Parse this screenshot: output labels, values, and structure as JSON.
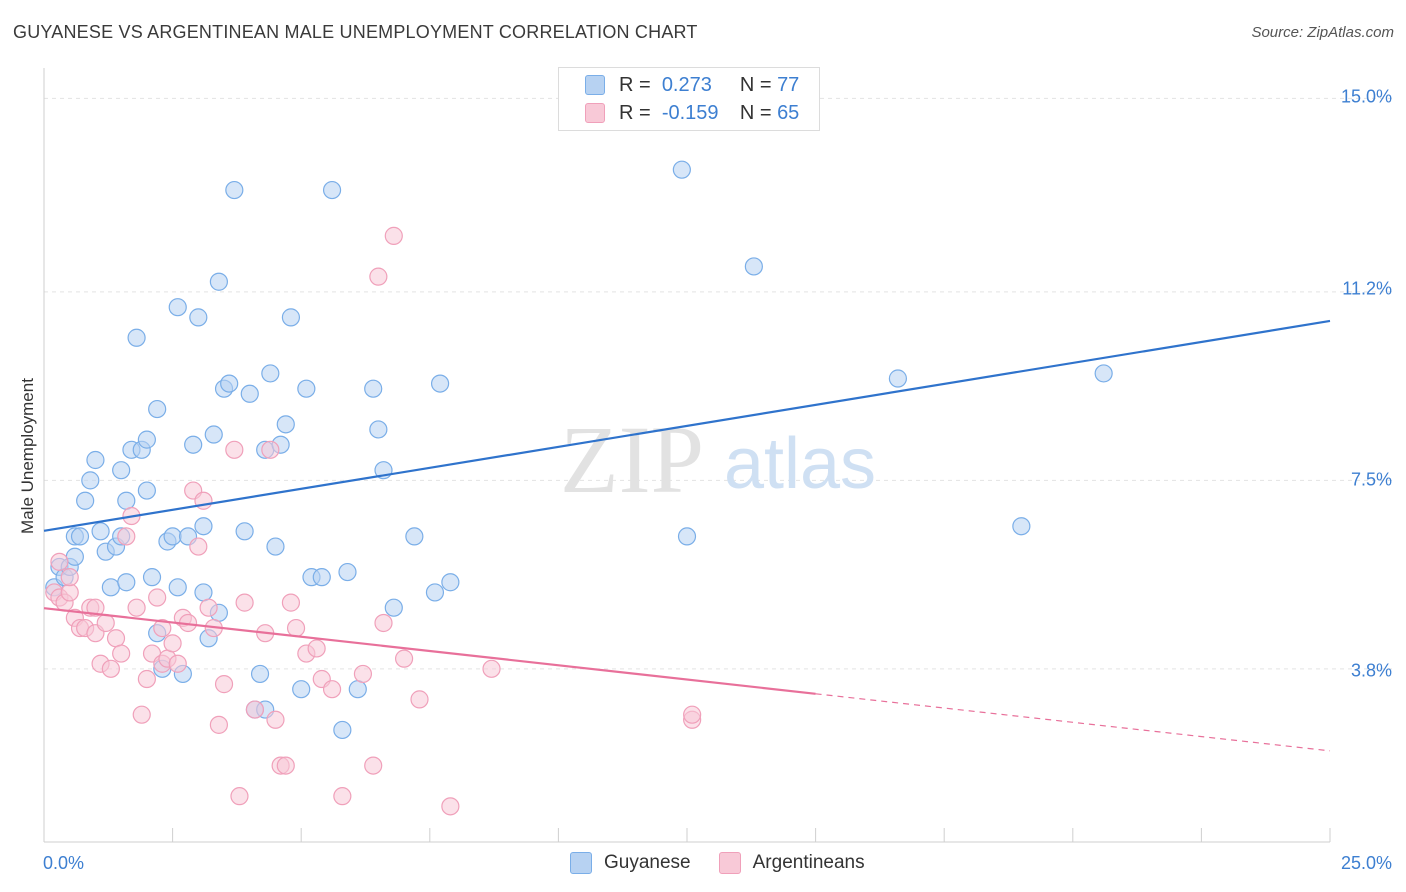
{
  "title": "GUYANESE VS ARGENTINEAN MALE UNEMPLOYMENT CORRELATION CHART",
  "source": "Source: ZipAtlas.com",
  "watermark": {
    "zip": "ZIP",
    "atlas": "atlas"
  },
  "legend": {
    "r_label": "R =",
    "n_label": "N =",
    "rows": [
      {
        "r": "0.273",
        "n": "77"
      },
      {
        "r": "-0.159",
        "n": "65"
      }
    ]
  },
  "chart_data": {
    "type": "scatter",
    "title": "GUYANESE VS ARGENTINEAN MALE UNEMPLOYMENT CORRELATION CHART",
    "xlabel": "",
    "ylabel": "Male Unemployment",
    "xlim": [
      0,
      25
    ],
    "ylim": [
      0.4,
      15.4
    ],
    "x_tick_labels": [
      "0.0%",
      "25.0%"
    ],
    "y_ticks": [
      3.8,
      7.5,
      11.2,
      15.0
    ],
    "y_tick_labels": [
      "3.8%",
      "7.5%",
      "11.2%",
      "15.0%"
    ],
    "grid": true,
    "legend_position": "top-center",
    "series": [
      {
        "name": "Guyanese",
        "color": "#7aaee8",
        "fill": "#b7d2f2",
        "trend": {
          "x": [
            0,
            25
          ],
          "y": [
            6.51,
            10.63
          ],
          "color": "#2f73cc"
        },
        "points": [
          [
            0.2,
            5.4
          ],
          [
            0.3,
            5.8
          ],
          [
            0.4,
            5.6
          ],
          [
            0.5,
            5.8
          ],
          [
            0.6,
            6.0
          ],
          [
            0.6,
            6.4
          ],
          [
            0.7,
            6.4
          ],
          [
            0.8,
            7.1
          ],
          [
            0.9,
            7.5
          ],
          [
            1.0,
            7.9
          ],
          [
            1.1,
            6.5
          ],
          [
            1.2,
            6.1
          ],
          [
            1.3,
            5.4
          ],
          [
            1.4,
            6.2
          ],
          [
            1.5,
            6.4
          ],
          [
            1.5,
            7.7
          ],
          [
            1.6,
            7.1
          ],
          [
            1.7,
            8.1
          ],
          [
            1.8,
            10.3
          ],
          [
            1.9,
            8.1
          ],
          [
            2.0,
            7.3
          ],
          [
            2.0,
            8.3
          ],
          [
            2.1,
            5.6
          ],
          [
            2.2,
            8.9
          ],
          [
            2.2,
            4.5
          ],
          [
            2.3,
            3.8
          ],
          [
            2.4,
            6.3
          ],
          [
            2.5,
            6.4
          ],
          [
            2.6,
            5.4
          ],
          [
            2.6,
            10.9
          ],
          [
            2.7,
            3.7
          ],
          [
            2.8,
            6.4
          ],
          [
            2.9,
            8.2
          ],
          [
            3.0,
            10.7
          ],
          [
            3.1,
            5.3
          ],
          [
            3.1,
            6.6
          ],
          [
            3.2,
            4.4
          ],
          [
            3.3,
            8.4
          ],
          [
            3.4,
            4.9
          ],
          [
            3.4,
            11.4
          ],
          [
            3.5,
            9.3
          ],
          [
            3.6,
            9.4
          ],
          [
            3.7,
            13.2
          ],
          [
            3.9,
            6.5
          ],
          [
            4.0,
            9.2
          ],
          [
            4.1,
            3.0
          ],
          [
            4.2,
            3.7
          ],
          [
            4.3,
            8.1
          ],
          [
            4.3,
            3.0
          ],
          [
            4.4,
            9.6
          ],
          [
            4.5,
            6.2
          ],
          [
            4.6,
            8.2
          ],
          [
            4.7,
            8.6
          ],
          [
            4.8,
            10.7
          ],
          [
            5.0,
            3.4
          ],
          [
            5.1,
            9.3
          ],
          [
            5.2,
            5.6
          ],
          [
            5.4,
            5.6
          ],
          [
            5.6,
            13.2
          ],
          [
            5.8,
            2.6
          ],
          [
            6.1,
            3.4
          ],
          [
            6.4,
            9.3
          ],
          [
            6.5,
            8.5
          ],
          [
            6.6,
            7.7
          ],
          [
            6.8,
            5.0
          ],
          [
            7.2,
            6.4
          ],
          [
            7.6,
            5.3
          ],
          [
            7.7,
            9.4
          ],
          [
            7.9,
            5.5
          ],
          [
            12.4,
            13.6
          ],
          [
            12.5,
            6.4
          ],
          [
            13.8,
            11.7
          ],
          [
            16.6,
            9.5
          ],
          [
            19.0,
            6.6
          ],
          [
            20.6,
            9.6
          ],
          [
            5.9,
            5.7
          ],
          [
            1.6,
            5.5
          ]
        ]
      },
      {
        "name": "Argentineans",
        "color": "#f0a0ba",
        "fill": "#f8c9d7",
        "trend": {
          "x": [
            0,
            15
          ],
          "y": [
            4.99,
            3.31
          ],
          "color": "#e8709a"
        },
        "trend_dashed": {
          "x": [
            15,
            25
          ],
          "y": [
            3.31,
            2.19
          ]
        },
        "points": [
          [
            0.2,
            5.3
          ],
          [
            0.3,
            5.9
          ],
          [
            0.3,
            5.2
          ],
          [
            0.4,
            5.1
          ],
          [
            0.5,
            5.3
          ],
          [
            0.6,
            4.8
          ],
          [
            0.7,
            4.6
          ],
          [
            0.8,
            4.6
          ],
          [
            0.9,
            5.0
          ],
          [
            1.0,
            4.5
          ],
          [
            1.1,
            3.9
          ],
          [
            1.2,
            4.7
          ],
          [
            1.3,
            3.8
          ],
          [
            1.4,
            4.4
          ],
          [
            1.5,
            4.1
          ],
          [
            1.6,
            6.4
          ],
          [
            1.7,
            6.8
          ],
          [
            1.8,
            5.0
          ],
          [
            1.9,
            2.9
          ],
          [
            2.0,
            3.6
          ],
          [
            2.1,
            4.1
          ],
          [
            2.2,
            5.2
          ],
          [
            2.3,
            3.9
          ],
          [
            2.4,
            4.0
          ],
          [
            2.5,
            4.3
          ],
          [
            2.6,
            3.9
          ],
          [
            2.7,
            4.8
          ],
          [
            2.8,
            4.7
          ],
          [
            2.9,
            7.3
          ],
          [
            3.0,
            6.2
          ],
          [
            3.1,
            7.1
          ],
          [
            3.2,
            5.0
          ],
          [
            3.3,
            4.6
          ],
          [
            3.4,
            2.7
          ],
          [
            3.5,
            3.5
          ],
          [
            3.7,
            8.1
          ],
          [
            3.8,
            1.3
          ],
          [
            3.9,
            5.1
          ],
          [
            4.1,
            3.0
          ],
          [
            4.3,
            4.5
          ],
          [
            4.4,
            8.1
          ],
          [
            4.5,
            2.8
          ],
          [
            4.6,
            1.9
          ],
          [
            4.7,
            1.9
          ],
          [
            4.8,
            5.1
          ],
          [
            4.9,
            4.6
          ],
          [
            5.1,
            4.1
          ],
          [
            5.3,
            4.2
          ],
          [
            5.4,
            3.6
          ],
          [
            5.6,
            3.4
          ],
          [
            5.8,
            1.3
          ],
          [
            6.2,
            3.7
          ],
          [
            6.4,
            1.9
          ],
          [
            6.5,
            11.5
          ],
          [
            6.6,
            4.7
          ],
          [
            6.8,
            12.3
          ],
          [
            7.0,
            4.0
          ],
          [
            7.3,
            3.2
          ],
          [
            7.9,
            1.1
          ],
          [
            8.7,
            3.8
          ],
          [
            12.6,
            2.8
          ],
          [
            12.6,
            2.9
          ],
          [
            0.5,
            5.6
          ],
          [
            1.0,
            5.0
          ],
          [
            2.3,
            4.6
          ]
        ]
      }
    ]
  }
}
